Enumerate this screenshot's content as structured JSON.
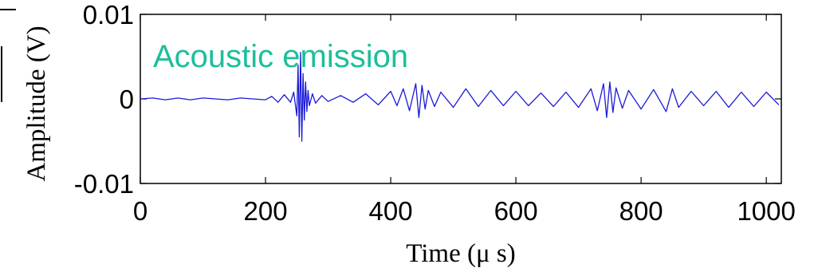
{
  "chart_data": {
    "type": "line",
    "title": "",
    "xlabel": "Time (μ s)",
    "ylabel": "Amplitude (V)",
    "xlim": [
      0,
      1024
    ],
    "ylim": [
      -0.01,
      0.01
    ],
    "xticks": [
      0,
      200,
      400,
      600,
      800,
      1000
    ],
    "xtick_labels": [
      "0",
      "200",
      "400",
      "600",
      "800",
      "1000"
    ],
    "yticks": [
      -0.01,
      0,
      0.01
    ],
    "ytick_labels": [
      "-0.01",
      "0",
      "0.01"
    ],
    "grid": false,
    "annotation": "Acoustic emission",
    "series": [
      {
        "color": "#1a1ad6",
        "x": [
          0,
          20,
          40,
          60,
          80,
          100,
          120,
          140,
          160,
          180,
          200,
          210,
          220,
          230,
          240,
          245,
          250,
          252,
          254,
          256,
          258,
          260,
          262,
          264,
          266,
          268,
          270,
          275,
          280,
          290,
          300,
          320,
          340,
          360,
          380,
          400,
          410,
          420,
          430,
          440,
          445,
          450,
          455,
          460,
          470,
          480,
          500,
          520,
          540,
          560,
          580,
          600,
          620,
          640,
          660,
          680,
          700,
          720,
          730,
          740,
          745,
          750,
          755,
          760,
          770,
          780,
          800,
          820,
          840,
          850,
          860,
          880,
          900,
          920,
          940,
          960,
          980,
          1000,
          1020
        ],
        "y": [
          0,
          0.0001,
          -0.0001,
          0.0001,
          -0.0001,
          0.0001,
          0,
          -0.0001,
          0.0001,
          0,
          -0.0001,
          0.0003,
          -0.0004,
          0.0005,
          -0.0004,
          0.0008,
          -0.002,
          0.004,
          -0.0045,
          0.0055,
          -0.005,
          0.003,
          -0.0025,
          0.002,
          -0.0015,
          0.001,
          -0.0008,
          0.0006,
          -0.0005,
          0.0004,
          -0.0003,
          0.0004,
          -0.0004,
          0.0006,
          -0.0007,
          0.0009,
          -0.0008,
          0.0012,
          -0.0014,
          0.0018,
          -0.0022,
          0.0016,
          -0.0012,
          0.001,
          -0.0009,
          0.0008,
          -0.001,
          0.0012,
          -0.0009,
          0.001,
          -0.0008,
          0.0009,
          -0.0008,
          0.0007,
          -0.0009,
          0.0008,
          -0.001,
          0.0012,
          -0.0014,
          0.0018,
          -0.0022,
          0.002,
          -0.0016,
          0.0013,
          -0.0011,
          0.001,
          -0.0012,
          0.0011,
          -0.0015,
          0.0012,
          -0.001,
          0.0009,
          -0.0008,
          0.0009,
          -0.001,
          0.0008,
          -0.0009,
          0.0008,
          -0.0007
        ]
      }
    ]
  },
  "colors": {
    "series": "#1a1ad6",
    "annotation": "#1dbf9a"
  }
}
